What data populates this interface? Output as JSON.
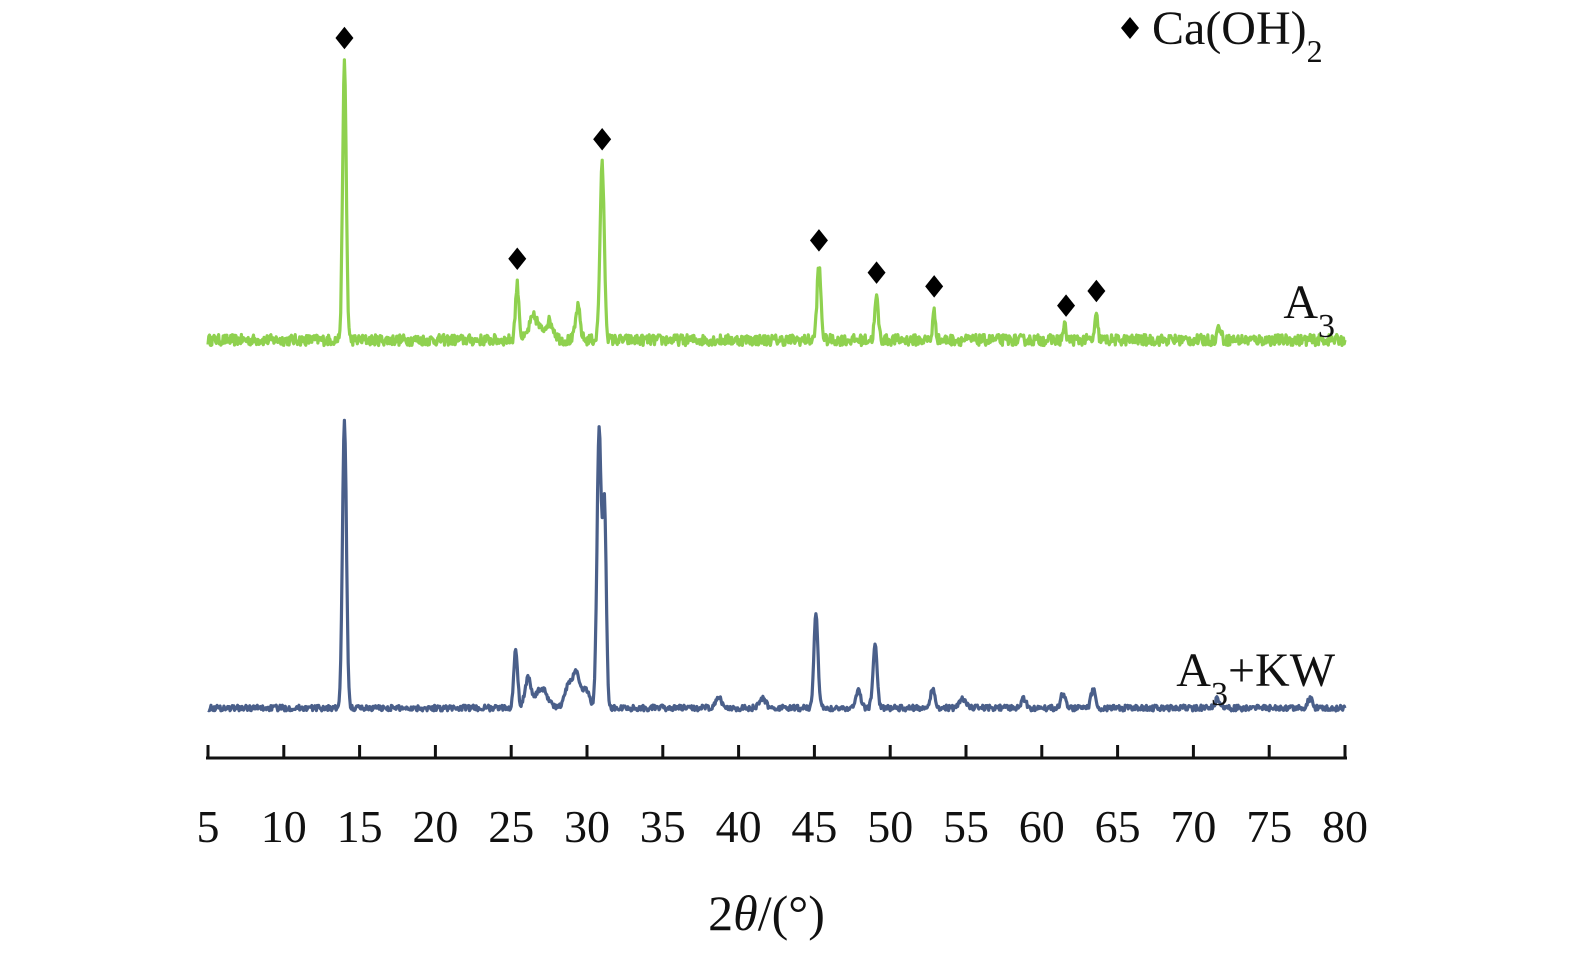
{
  "chart_data": {
    "type": "line",
    "title": "",
    "xlabel": {
      "prefix": "2",
      "symbol": "θ",
      "suffix": "/(°)"
    },
    "ylabel": "",
    "xlim": [
      5,
      80
    ],
    "x_ticks": [
      5,
      10,
      15,
      20,
      25,
      30,
      35,
      40,
      45,
      50,
      55,
      60,
      65,
      70,
      75,
      80
    ],
    "grid": false,
    "legend": {
      "placement": "top-right",
      "marker": "diamond",
      "entries": [
        {
          "base": "Ca(OH)",
          "sub": "2"
        }
      ]
    },
    "marker_color": "#000000",
    "series": [
      {
        "name": {
          "base": "A",
          "sub": "3",
          "suffix": ""
        },
        "color": "#8fd14f",
        "baseline": 0,
        "noise": 1.2,
        "peaks": [
          {
            "x": 14.0,
            "h": 60,
            "w": 0.12
          },
          {
            "x": 25.4,
            "h": 12,
            "w": 0.12
          },
          {
            "x": 26.5,
            "h": 5,
            "w": 0.3
          },
          {
            "x": 27.5,
            "h": 4,
            "w": 0.3
          },
          {
            "x": 29.4,
            "h": 7,
            "w": 0.15
          },
          {
            "x": 31.0,
            "h": 38,
            "w": 0.14
          },
          {
            "x": 45.3,
            "h": 16,
            "w": 0.13
          },
          {
            "x": 49.1,
            "h": 9,
            "w": 0.12
          },
          {
            "x": 52.9,
            "h": 6,
            "w": 0.1
          },
          {
            "x": 61.5,
            "h": 3,
            "w": 0.1
          },
          {
            "x": 63.6,
            "h": 5,
            "w": 0.1
          },
          {
            "x": 71.7,
            "h": 3,
            "w": 0.12
          }
        ]
      },
      {
        "name": {
          "base": "A",
          "sub": "3",
          "suffix": "+KW"
        },
        "color": "#4a5f8a",
        "baseline": 0,
        "noise": 0.6,
        "peaks": [
          {
            "x": 14.0,
            "h": 60,
            "w": 0.13
          },
          {
            "x": 25.3,
            "h": 12,
            "w": 0.13
          },
          {
            "x": 26.1,
            "h": 6,
            "w": 0.2
          },
          {
            "x": 27.0,
            "h": 4,
            "w": 0.4
          },
          {
            "x": 28.8,
            "h": 5,
            "w": 0.25
          },
          {
            "x": 29.3,
            "h": 7,
            "w": 0.2
          },
          {
            "x": 29.9,
            "h": 4,
            "w": 0.25
          },
          {
            "x": 30.8,
            "h": 58,
            "w": 0.14
          },
          {
            "x": 31.15,
            "h": 42,
            "w": 0.12
          },
          {
            "x": 38.7,
            "h": 2,
            "w": 0.2
          },
          {
            "x": 41.6,
            "h": 2,
            "w": 0.2
          },
          {
            "x": 45.1,
            "h": 20,
            "w": 0.13
          },
          {
            "x": 47.9,
            "h": 4,
            "w": 0.15
          },
          {
            "x": 49.0,
            "h": 13,
            "w": 0.14
          },
          {
            "x": 52.8,
            "h": 4,
            "w": 0.15
          },
          {
            "x": 54.8,
            "h": 2,
            "w": 0.2
          },
          {
            "x": 58.8,
            "h": 2,
            "w": 0.15
          },
          {
            "x": 61.4,
            "h": 3,
            "w": 0.15
          },
          {
            "x": 63.4,
            "h": 4,
            "w": 0.15
          },
          {
            "x": 71.6,
            "h": 2,
            "w": 0.15
          },
          {
            "x": 77.7,
            "h": 2,
            "w": 0.15
          }
        ]
      }
    ],
    "markers": [
      {
        "x": 14.0,
        "label": "Ca(OH)2"
      },
      {
        "x": 25.4,
        "label": "Ca(OH)2"
      },
      {
        "x": 31.0,
        "label": "Ca(OH)2"
      },
      {
        "x": 45.3,
        "label": "Ca(OH)2"
      },
      {
        "x": 49.1,
        "label": "Ca(OH)2"
      },
      {
        "x": 52.9,
        "label": "Ca(OH)2"
      },
      {
        "x": 61.6,
        "label": "Ca(OH)2"
      },
      {
        "x": 63.6,
        "label": "Ca(OH)2"
      }
    ]
  }
}
